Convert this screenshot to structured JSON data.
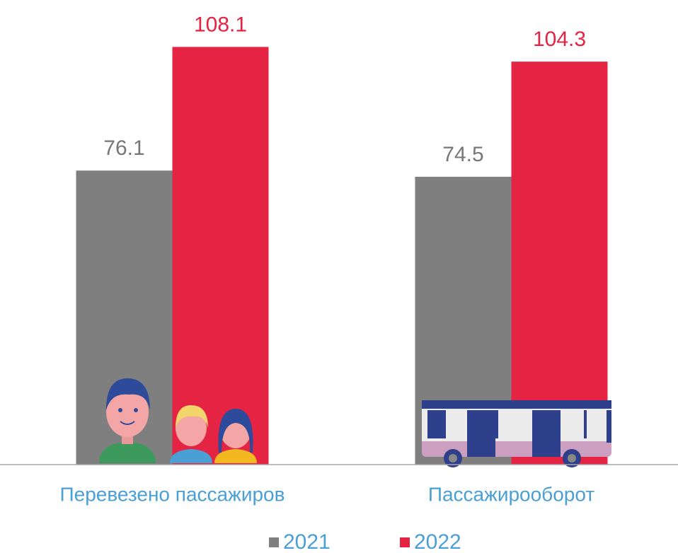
{
  "chart_data": {
    "type": "bar",
    "categories": [
      "Перевезено пассажиров",
      "Пассажирооборот"
    ],
    "series": [
      {
        "name": "2021",
        "color": "#7f7f7f",
        "label_color": "#777777",
        "values": [
          76.1,
          74.5
        ]
      },
      {
        "name": "2022",
        "color": "#e52343",
        "label_color": "#e52343",
        "values": [
          108.1,
          104.3
        ]
      }
    ],
    "ylim": [
      0,
      110
    ]
  }
}
